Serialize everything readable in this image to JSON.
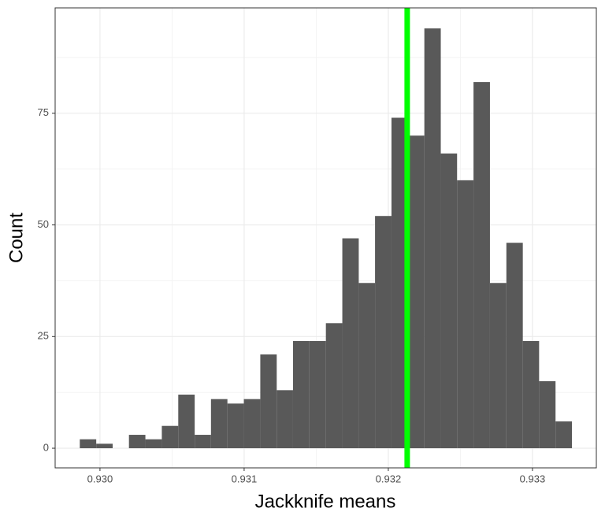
{
  "chart_data": {
    "type": "histogram",
    "x_label": "Jackknife means",
    "y_label": "Count",
    "bins": [
      0.92986,
      0.929974,
      0.930088,
      0.930201,
      0.930315,
      0.930429,
      0.930543,
      0.930657,
      0.93077,
      0.930884,
      0.930998,
      0.931112,
      0.931226,
      0.931339,
      0.931453,
      0.931567,
      0.931681,
      0.931795,
      0.931908,
      0.932022,
      0.932136,
      0.93225,
      0.932364,
      0.932477,
      0.932591,
      0.932705,
      0.932819,
      0.932933,
      0.933046,
      0.93316,
      0.933274
    ],
    "values": [
      2,
      1,
      0,
      3,
      2,
      5,
      12,
      3,
      11,
      10,
      11,
      21,
      13,
      24,
      24,
      28,
      47,
      37,
      52,
      74,
      70,
      94,
      66,
      60,
      82,
      37,
      46,
      24,
      15,
      6
    ],
    "color": "#595959",
    "vline": 0.932131,
    "vline_color": "#00ff00",
    "xlim": [
      0.929689,
      0.933443
    ],
    "ylim": [
      -4.4,
      98.6
    ],
    "xticks": [
      {
        "value": 0.93,
        "label": "0.930"
      },
      {
        "value": 0.931,
        "label": "0.931"
      },
      {
        "value": 0.932,
        "label": "0.932"
      },
      {
        "value": 0.933,
        "label": "0.933"
      }
    ],
    "yticks": [
      0,
      25,
      50,
      75
    ],
    "x_minor_grid": [
      0.9305,
      0.9315,
      0.9325
    ],
    "y_minor_grid": [
      12.5,
      37.5,
      62.5,
      87.5
    ],
    "grid": true
  }
}
